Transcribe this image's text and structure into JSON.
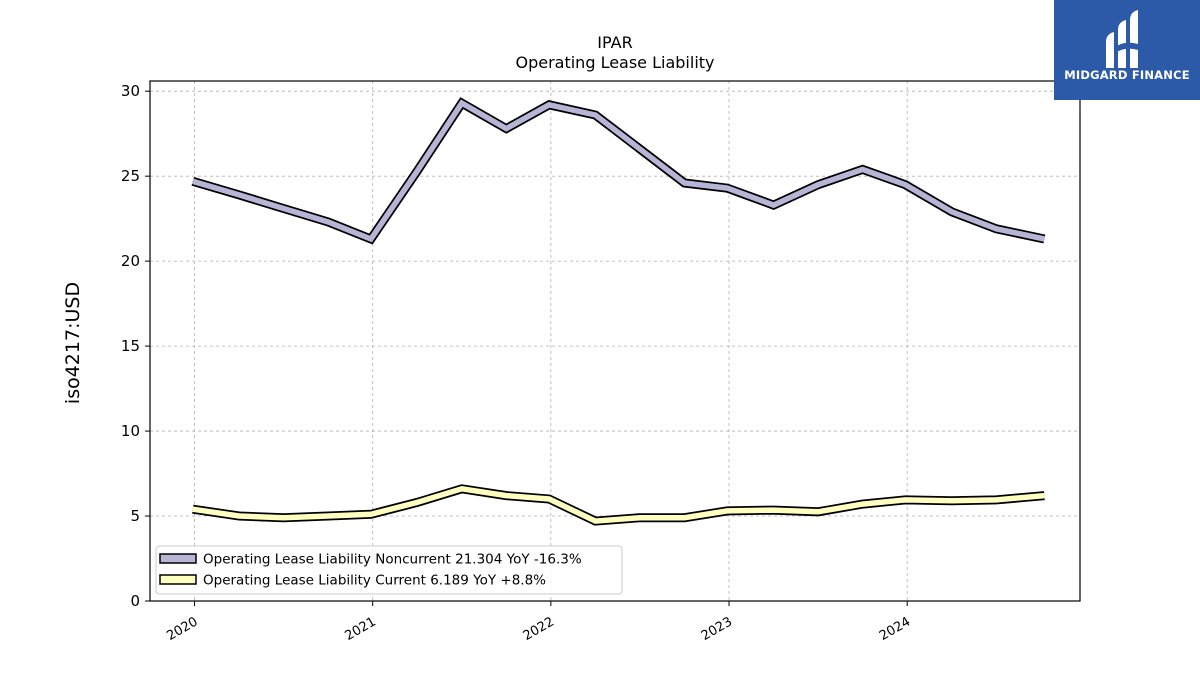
{
  "brand": {
    "name": "MIDGARD FINANCE",
    "bg_color": "#2c5aa8",
    "fg_color": "#ffffff"
  },
  "chart_data": {
    "type": "line",
    "title": "IPAR",
    "subtitle": "Operating Lease Liability",
    "ylabel": "iso4217:USD",
    "xlabel": "",
    "ylim": [
      0,
      30.6
    ],
    "xlim": [
      2019.75,
      2024.97
    ],
    "yticks": [
      0,
      5,
      10,
      15,
      20,
      25,
      30
    ],
    "xticks": [
      2020,
      2021,
      2022,
      2023,
      2024
    ],
    "xtick_labels": [
      "2020",
      "2021",
      "2022",
      "2023",
      "2024"
    ],
    "grid": true,
    "legend_position": "lower-left",
    "series": [
      {
        "name": "Operating Lease Liability Noncurrent",
        "legend_label": "Operating Lease Liability Noncurrent  21.304 YoY -16.3%",
        "color": "#b7b5d6",
        "outline": "#000000",
        "x": [
          2019.99,
          2020.25,
          2020.5,
          2020.75,
          2020.99,
          2021.25,
          2021.5,
          2021.75,
          2021.99,
          2022.25,
          2022.5,
          2022.75,
          2022.99,
          2023.25,
          2023.5,
          2023.75,
          2023.99,
          2024.25,
          2024.5,
          2024.77
        ],
        "values": [
          24.7,
          23.9,
          23.1,
          22.3,
          21.3,
          25.3,
          29.3,
          27.8,
          29.2,
          28.6,
          26.6,
          24.6,
          24.3,
          23.3,
          24.5,
          25.4,
          24.5,
          22.9,
          21.9,
          21.3
        ]
      },
      {
        "name": "Operating Lease Liability Current",
        "legend_label": "Operating Lease Liability Current  6.189 YoY +8.8%",
        "color": "#ffffbf",
        "outline": "#000000",
        "x": [
          2019.99,
          2020.25,
          2020.5,
          2020.75,
          2020.99,
          2021.25,
          2021.5,
          2021.75,
          2021.99,
          2022.25,
          2022.5,
          2022.75,
          2022.99,
          2023.25,
          2023.5,
          2023.75,
          2023.99,
          2024.25,
          2024.5,
          2024.77
        ],
        "values": [
          5.4,
          5.0,
          4.9,
          5.0,
          5.1,
          5.8,
          6.6,
          6.2,
          6.0,
          4.7,
          4.9,
          4.9,
          5.3,
          5.35,
          5.25,
          5.7,
          5.95,
          5.9,
          5.95,
          6.2
        ]
      }
    ]
  }
}
